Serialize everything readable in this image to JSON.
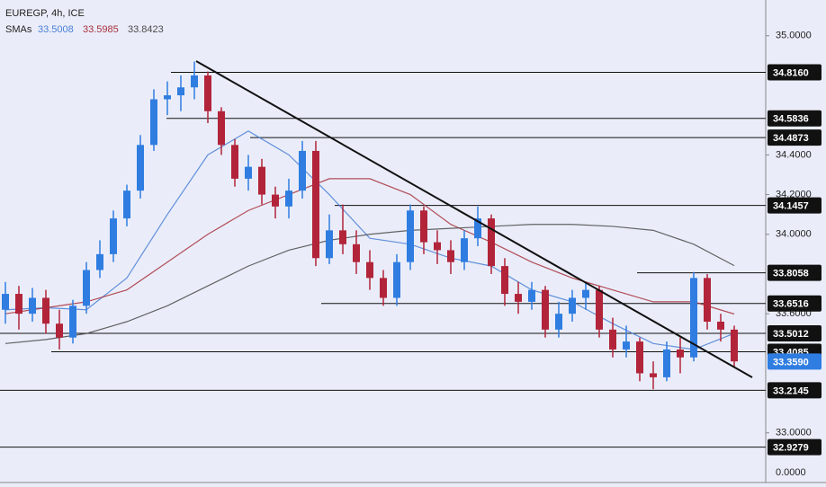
{
  "chart_data": {
    "type": "candlestick",
    "title": "EUREGP, 4h, ICE",
    "sma_title": "SMAs",
    "up_color": "#2f7de1",
    "down_color": "#b2243a",
    "open": [
      33.62,
      33.7,
      33.6,
      33.68,
      33.55,
      33.48,
      33.64,
      33.82,
      33.9,
      34.08,
      34.22,
      34.45,
      34.68,
      34.7,
      34.74,
      34.8,
      34.62,
      34.45,
      34.28,
      34.34,
      34.2,
      34.14,
      34.22,
      34.42,
      33.88,
      34.02,
      33.95,
      33.86,
      33.78,
      33.68,
      33.86,
      34.12,
      33.96,
      33.92,
      33.86,
      33.98,
      34.08,
      33.84,
      33.7,
      33.66,
      33.72,
      33.52,
      33.6,
      33.68,
      33.72,
      33.52,
      33.42,
      33.46,
      33.3,
      33.28,
      33.42,
      33.38,
      33.78,
      33.56,
      33.52
    ],
    "high": [
      33.76,
      33.74,
      33.73,
      33.72,
      33.62,
      33.67,
      33.86,
      33.97,
      34.12,
      34.25,
      34.5,
      34.73,
      34.77,
      34.8,
      34.87,
      34.82,
      34.64,
      34.48,
      34.4,
      34.38,
      34.24,
      34.28,
      34.47,
      34.47,
      34.1,
      34.15,
      34.02,
      33.92,
      33.82,
      33.9,
      34.15,
      34.14,
      34.02,
      33.97,
      34.02,
      34.14,
      34.1,
      33.88,
      33.76,
      33.76,
      33.74,
      33.66,
      33.72,
      33.76,
      33.74,
      33.58,
      33.54,
      33.48,
      33.36,
      33.46,
      33.48,
      33.81,
      33.8,
      33.6,
      33.54
    ],
    "low": [
      33.55,
      33.52,
      33.56,
      33.5,
      33.42,
      33.45,
      33.6,
      33.78,
      33.86,
      34.04,
      34.18,
      34.42,
      34.6,
      34.62,
      34.68,
      34.56,
      34.4,
      34.24,
      34.22,
      34.15,
      34.08,
      34.08,
      34.18,
      33.84,
      33.85,
      33.9,
      33.8,
      33.72,
      33.64,
      33.64,
      33.82,
      33.9,
      33.85,
      33.8,
      33.82,
      33.94,
      33.8,
      33.64,
      33.6,
      33.62,
      33.48,
      33.48,
      33.56,
      33.62,
      33.48,
      33.38,
      33.38,
      33.26,
      33.22,
      33.26,
      33.3,
      33.36,
      33.52,
      33.46,
      33.33
    ],
    "close": [
      33.7,
      33.6,
      33.68,
      33.55,
      33.48,
      33.64,
      33.82,
      33.9,
      34.08,
      34.22,
      34.45,
      34.68,
      34.7,
      34.74,
      34.8,
      34.62,
      34.45,
      34.28,
      34.34,
      34.2,
      34.14,
      34.22,
      34.42,
      33.88,
      34.02,
      33.95,
      33.86,
      33.78,
      33.68,
      33.86,
      34.12,
      33.96,
      33.92,
      33.86,
      33.98,
      34.08,
      33.84,
      33.7,
      33.66,
      33.72,
      33.52,
      33.6,
      33.68,
      33.72,
      33.52,
      33.42,
      33.46,
      33.3,
      33.28,
      33.42,
      33.38,
      33.78,
      33.56,
      33.52,
      33.36
    ],
    "sma_x": [
      0,
      3,
      6,
      9,
      12,
      15,
      18,
      21,
      24,
      27,
      30,
      33,
      36,
      39,
      42,
      45,
      48,
      51,
      54
    ],
    "series": [
      {
        "color": "#4a7fd6",
        "legend_label": "33.5008",
        "values": [
          33.62,
          33.63,
          33.62,
          33.78,
          34.1,
          34.4,
          34.52,
          34.4,
          34.2,
          33.98,
          33.95,
          33.88,
          33.84,
          33.72,
          33.66,
          33.55,
          33.45,
          33.42,
          33.5008
        ]
      },
      {
        "color": "#a8303c",
        "legend_label": "33.5985",
        "values": [
          33.6,
          33.63,
          33.66,
          33.72,
          33.86,
          34.0,
          34.12,
          34.2,
          34.28,
          34.28,
          34.2,
          34.05,
          33.96,
          33.86,
          33.78,
          33.72,
          33.66,
          33.66,
          33.5985
        ]
      },
      {
        "color": "#4a4a4a",
        "legend_label": "33.8423",
        "values": [
          33.45,
          33.47,
          33.5,
          33.56,
          33.64,
          33.74,
          33.84,
          33.92,
          33.97,
          34.0,
          34.02,
          34.03,
          34.04,
          34.05,
          34.05,
          34.04,
          34.02,
          33.95,
          33.8423
        ]
      }
    ],
    "ylim": [
      32.75,
      35.18
    ],
    "yticks": [
      {
        "value": 35,
        "label": "35.0000"
      },
      {
        "value": 34.4,
        "label": "34.4000"
      },
      {
        "value": 34.2,
        "label": "34.2000"
      },
      {
        "value": 34,
        "label": "34.0000"
      },
      {
        "value": 33.6,
        "label": "33.6000"
      },
      {
        "value": 33,
        "label": "33.0000"
      }
    ],
    "axis_footer": "0.0000",
    "levels": [
      {
        "value": 34.816,
        "label": "34.8160"
      },
      {
        "value": 34.5836,
        "label": "34.5836"
      },
      {
        "value": 34.4873,
        "label": "34.4873"
      },
      {
        "value": 34.1457,
        "label": "34.1457"
      },
      {
        "value": 33.8058,
        "label": "33.8058"
      },
      {
        "value": 33.6516,
        "label": "33.6516"
      },
      {
        "value": 33.5012,
        "label": "33.5012"
      },
      {
        "value": 33.4085,
        "label": "33.4085"
      },
      {
        "value": 33.2145,
        "label": "33.2145"
      },
      {
        "value": 32.9279,
        "label": "32.9279"
      }
    ],
    "last_price": {
      "value": 33.359,
      "label": "33.3590"
    }
  }
}
